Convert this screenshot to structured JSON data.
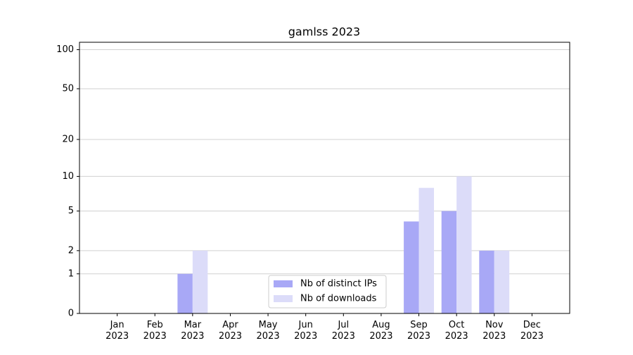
{
  "chart_data": {
    "type": "bar",
    "title": "gamlss 2023",
    "categories": [
      "Jan 2023",
      "Feb 2023",
      "Mar 2023",
      "Apr 2023",
      "May 2023",
      "Jun 2023",
      "Jul 2023",
      "Aug 2023",
      "Sep 2023",
      "Oct 2023",
      "Nov 2023",
      "Dec 2023"
    ],
    "series": [
      {
        "name": "Nb of distinct IPs",
        "color": "#a8a8f6",
        "values": [
          0,
          0,
          1,
          0,
          0,
          0,
          0,
          0,
          4,
          5,
          2,
          0
        ]
      },
      {
        "name": "Nb of downloads",
        "color": "#dcdcf9",
        "values": [
          0,
          0,
          2,
          0,
          0,
          0,
          0,
          0,
          8,
          10,
          2,
          0
        ]
      }
    ],
    "yscale": "log1p",
    "ylim": [
      0,
      114
    ],
    "yticks": [
      0,
      1,
      2,
      5,
      10,
      20,
      50,
      100
    ],
    "grid": true,
    "legend": "lower center"
  }
}
